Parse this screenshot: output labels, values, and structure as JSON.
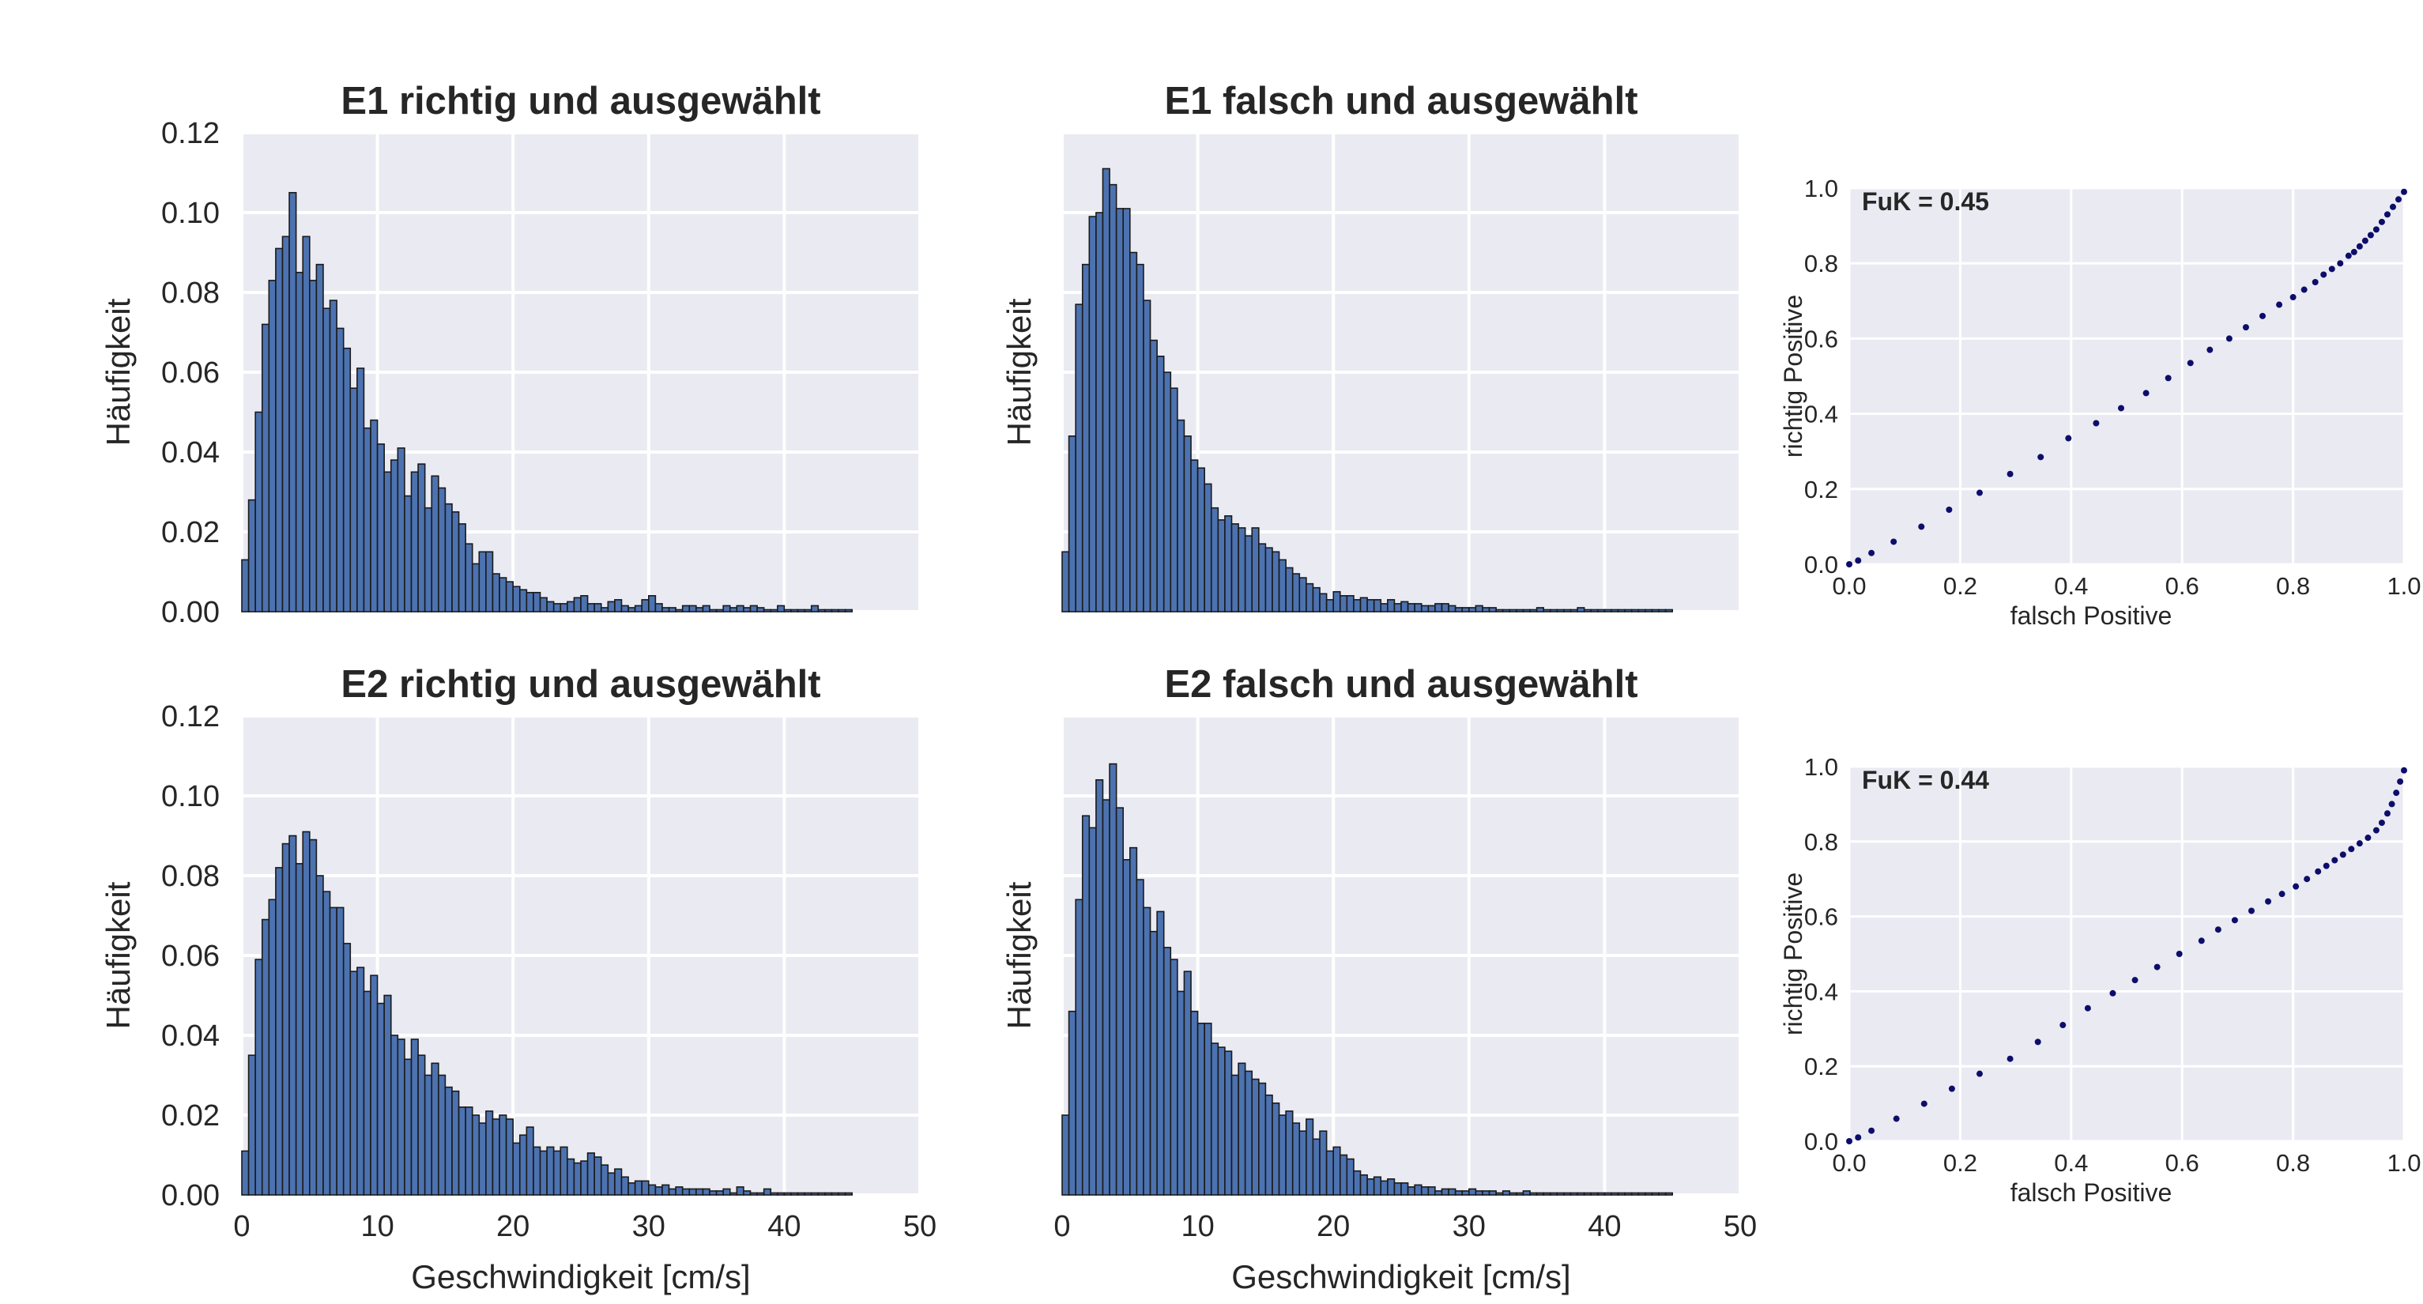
{
  "colors": {
    "panel_bg": "#eaeaf2",
    "grid": "#ffffff",
    "bar_fill": "#4c72b0",
    "bar_edge": "#1a1a1a",
    "roc_point": "#0d0d6b",
    "text": "#262626"
  },
  "chart_data": [
    {
      "type": "bar",
      "title": "E1 richtig und ausgewählt",
      "xlabel": "",
      "ylabel": "Häufigkeit",
      "xlim": [
        0,
        50
      ],
      "ylim": [
        0,
        0.12
      ],
      "bin_width": 0.5,
      "yticks": [
        "0.00",
        "0.02",
        "0.04",
        "0.06",
        "0.08",
        "0.10",
        "0.12"
      ],
      "xticks": [],
      "values": [
        0.013,
        0.028,
        0.05,
        0.072,
        0.083,
        0.091,
        0.094,
        0.105,
        0.085,
        0.094,
        0.083,
        0.087,
        0.076,
        0.078,
        0.071,
        0.066,
        0.056,
        0.061,
        0.046,
        0.048,
        0.042,
        0.035,
        0.038,
        0.041,
        0.029,
        0.035,
        0.037,
        0.026,
        0.034,
        0.031,
        0.027,
        0.025,
        0.022,
        0.017,
        0.012,
        0.015,
        0.015,
        0.0095,
        0.0085,
        0.0075,
        0.0063,
        0.0055,
        0.0048,
        0.0048,
        0.0035,
        0.0025,
        0.002,
        0.002,
        0.0025,
        0.0035,
        0.004,
        0.002,
        0.002,
        0.001,
        0.0025,
        0.003,
        0.0015,
        0.001,
        0.0015,
        0.003,
        0.004,
        0.002,
        0.001,
        0.001,
        0.0005,
        0.0015,
        0.0015,
        0.001,
        0.0015,
        0.0005,
        0.0005,
        0.0015,
        0.001,
        0.0015,
        0.001,
        0.0015,
        0.001,
        0.0005,
        0.0005,
        0.0015,
        0.0005,
        0.0005,
        0.0005,
        0.0005,
        0.0015,
        0.0005,
        0.0005,
        0.0005,
        0.0005,
        0.0005
      ]
    },
    {
      "type": "bar",
      "title": "E1 falsch und ausgewählt",
      "xlabel": "",
      "ylabel": "Häufigkeit",
      "xlim": [
        0,
        50
      ],
      "ylim": [
        0,
        0.12
      ],
      "bin_width": 0.5,
      "yticks": [],
      "xticks": [],
      "values": [
        0.015,
        0.044,
        0.077,
        0.087,
        0.099,
        0.1,
        0.111,
        0.107,
        0.101,
        0.101,
        0.09,
        0.087,
        0.078,
        0.068,
        0.064,
        0.06,
        0.056,
        0.048,
        0.044,
        0.038,
        0.036,
        0.032,
        0.026,
        0.023,
        0.024,
        0.022,
        0.021,
        0.019,
        0.021,
        0.017,
        0.016,
        0.015,
        0.013,
        0.011,
        0.0095,
        0.0085,
        0.007,
        0.006,
        0.0045,
        0.003,
        0.005,
        0.004,
        0.004,
        0.003,
        0.0035,
        0.003,
        0.003,
        0.002,
        0.003,
        0.002,
        0.0025,
        0.002,
        0.002,
        0.0015,
        0.0015,
        0.002,
        0.002,
        0.0015,
        0.001,
        0.001,
        0.001,
        0.0015,
        0.001,
        0.001,
        0.0005,
        0.0005,
        0.0005,
        0.0005,
        0.0005,
        0.0005,
        0.001,
        0.0005,
        0.0005,
        0.0005,
        0.0005,
        0.0005,
        0.001,
        0.0005,
        0.0005,
        0.0005,
        0.0005,
        0.0005,
        0.0005,
        0.0005,
        0.0005,
        0.0005,
        0.0005,
        0.0005,
        0.0005,
        0.0005
      ]
    },
    {
      "type": "scatter",
      "title": "",
      "annotation": "FuK = 0.45",
      "xlabel": "falsch Positive",
      "ylabel": "richtig Positive",
      "xlim": [
        0,
        1
      ],
      "ylim": [
        0,
        1
      ],
      "xticks": [
        "0.0",
        "0.2",
        "0.4",
        "0.6",
        "0.8",
        "1.0"
      ],
      "yticks": [
        "0.0",
        "0.2",
        "0.4",
        "0.6",
        "0.8",
        "1.0"
      ],
      "x": [
        0.0,
        0.016,
        0.04,
        0.08,
        0.13,
        0.18,
        0.235,
        0.29,
        0.345,
        0.395,
        0.445,
        0.49,
        0.535,
        0.575,
        0.615,
        0.65,
        0.685,
        0.715,
        0.745,
        0.775,
        0.8,
        0.82,
        0.84,
        0.855,
        0.87,
        0.885,
        0.9,
        0.91,
        0.92,
        0.93,
        0.94,
        0.95,
        0.96,
        0.97,
        0.98,
        0.99,
        1.0
      ],
      "y": [
        0.0,
        0.01,
        0.03,
        0.06,
        0.1,
        0.145,
        0.19,
        0.24,
        0.285,
        0.335,
        0.375,
        0.415,
        0.455,
        0.495,
        0.535,
        0.57,
        0.6,
        0.63,
        0.66,
        0.69,
        0.71,
        0.73,
        0.75,
        0.77,
        0.785,
        0.8,
        0.82,
        0.83,
        0.845,
        0.86,
        0.875,
        0.89,
        0.91,
        0.93,
        0.95,
        0.97,
        0.99
      ]
    },
    {
      "type": "bar",
      "title": "E2 richtig und ausgewählt",
      "xlabel": "Geschwindigkeit [cm/s]",
      "ylabel": "Häufigkeit",
      "xlim": [
        0,
        50
      ],
      "ylim": [
        0,
        0.12
      ],
      "bin_width": 0.5,
      "yticks": [
        "0.00",
        "0.02",
        "0.04",
        "0.06",
        "0.08",
        "0.10",
        "0.12"
      ],
      "xticks": [
        "0",
        "10",
        "20",
        "30",
        "40",
        "50"
      ],
      "values": [
        0.011,
        0.035,
        0.059,
        0.069,
        0.074,
        0.082,
        0.088,
        0.09,
        0.083,
        0.091,
        0.089,
        0.08,
        0.076,
        0.072,
        0.072,
        0.063,
        0.056,
        0.057,
        0.051,
        0.055,
        0.048,
        0.05,
        0.04,
        0.039,
        0.034,
        0.039,
        0.035,
        0.03,
        0.033,
        0.03,
        0.027,
        0.026,
        0.022,
        0.022,
        0.02,
        0.018,
        0.021,
        0.019,
        0.02,
        0.019,
        0.013,
        0.015,
        0.017,
        0.012,
        0.011,
        0.012,
        0.011,
        0.012,
        0.009,
        0.008,
        0.0085,
        0.0105,
        0.0095,
        0.0075,
        0.0055,
        0.0065,
        0.0045,
        0.003,
        0.0035,
        0.0035,
        0.0025,
        0.002,
        0.0025,
        0.0015,
        0.002,
        0.0015,
        0.0015,
        0.0015,
        0.0015,
        0.001,
        0.001,
        0.0015,
        0.0005,
        0.002,
        0.001,
        0.0005,
        0.0005,
        0.0015,
        0.0005,
        0.0005,
        0.0005,
        0.0005,
        0.0005,
        0.0005,
        0.0005,
        0.0005,
        0.0005,
        0.0005,
        0.0005,
        0.0005
      ]
    },
    {
      "type": "bar",
      "title": "E2 falsch und ausgewählt",
      "xlabel": "Geschwindigkeit [cm/s]",
      "ylabel": "Häufigkeit",
      "xlim": [
        0,
        50
      ],
      "ylim": [
        0,
        0.12
      ],
      "bin_width": 0.5,
      "yticks": [],
      "xticks": [
        "0",
        "10",
        "20",
        "30",
        "40",
        "50"
      ],
      "values": [
        0.02,
        0.046,
        0.074,
        0.095,
        0.092,
        0.104,
        0.099,
        0.108,
        0.097,
        0.084,
        0.087,
        0.079,
        0.072,
        0.066,
        0.071,
        0.062,
        0.059,
        0.051,
        0.056,
        0.046,
        0.043,
        0.043,
        0.038,
        0.037,
        0.036,
        0.03,
        0.033,
        0.031,
        0.029,
        0.028,
        0.025,
        0.023,
        0.02,
        0.021,
        0.018,
        0.016,
        0.019,
        0.014,
        0.016,
        0.011,
        0.012,
        0.01,
        0.009,
        0.006,
        0.005,
        0.004,
        0.0045,
        0.0035,
        0.004,
        0.003,
        0.003,
        0.002,
        0.0025,
        0.002,
        0.002,
        0.001,
        0.0015,
        0.0015,
        0.001,
        0.001,
        0.0015,
        0.001,
        0.001,
        0.001,
        0.0005,
        0.001,
        0.0005,
        0.0005,
        0.001,
        0.0005,
        0.0005,
        0.0005,
        0.0005,
        0.0005,
        0.0005,
        0.0005,
        0.0005,
        0.0005,
        0.0005,
        0.0005,
        0.0005,
        0.0005,
        0.0005,
        0.0005,
        0.0005,
        0.0005,
        0.0005,
        0.0005,
        0.0005,
        0.0005
      ]
    },
    {
      "type": "scatter",
      "title": "",
      "annotation": "FuK = 0.44",
      "xlabel": "falsch Positive",
      "ylabel": "richtig Positive",
      "xlim": [
        0,
        1
      ],
      "ylim": [
        0,
        1
      ],
      "xticks": [
        "0.0",
        "0.2",
        "0.4",
        "0.6",
        "0.8",
        "1.0"
      ],
      "yticks": [
        "0.0",
        "0.2",
        "0.4",
        "0.6",
        "0.8",
        "1.0"
      ],
      "x": [
        0.0,
        0.016,
        0.04,
        0.085,
        0.135,
        0.185,
        0.235,
        0.29,
        0.34,
        0.385,
        0.43,
        0.475,
        0.515,
        0.555,
        0.595,
        0.635,
        0.665,
        0.695,
        0.725,
        0.755,
        0.78,
        0.805,
        0.825,
        0.845,
        0.86,
        0.875,
        0.89,
        0.905,
        0.92,
        0.935,
        0.95,
        0.96,
        0.97,
        0.978,
        0.986,
        0.993,
        1.0
      ],
      "y": [
        0.0,
        0.01,
        0.028,
        0.06,
        0.1,
        0.14,
        0.18,
        0.22,
        0.265,
        0.31,
        0.355,
        0.395,
        0.43,
        0.465,
        0.5,
        0.535,
        0.565,
        0.59,
        0.615,
        0.64,
        0.66,
        0.68,
        0.7,
        0.72,
        0.735,
        0.75,
        0.765,
        0.78,
        0.795,
        0.81,
        0.83,
        0.85,
        0.875,
        0.9,
        0.93,
        0.96,
        0.99
      ]
    }
  ]
}
